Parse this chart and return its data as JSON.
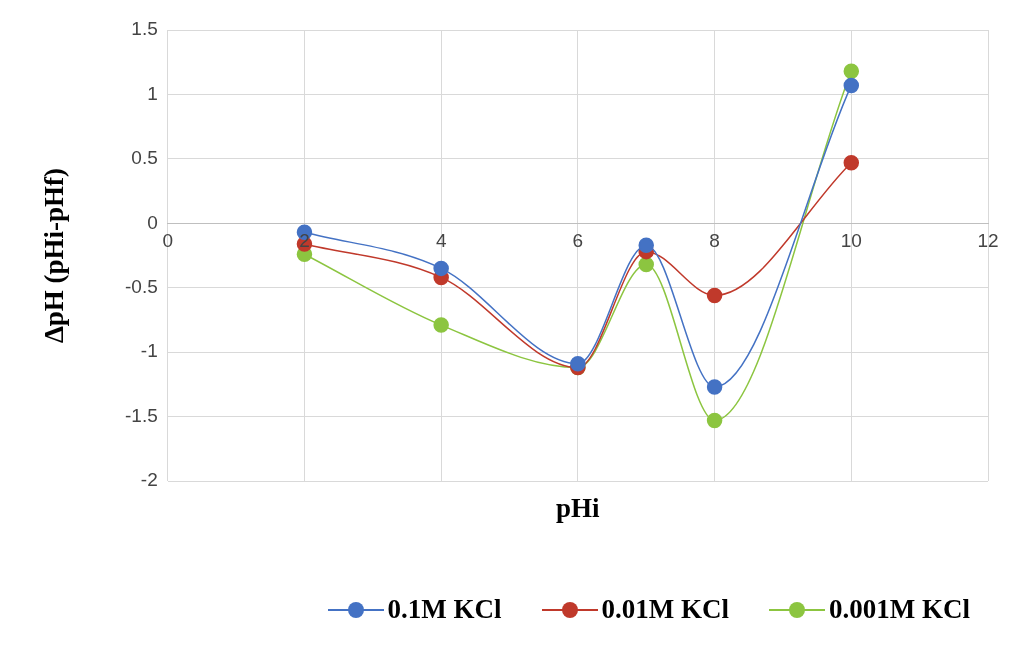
{
  "chart_data": {
    "type": "line",
    "xlabel": "pHi",
    "ylabel": "ΔpH (pHi-pHf)",
    "x": [
      2,
      4,
      6,
      7,
      8,
      10
    ],
    "series": [
      {
        "name": "0.1M KCl",
        "color": "#4472c4",
        "values": [
          -0.07,
          -0.35,
          -1.09,
          -0.17,
          -1.27,
          1.07
        ]
      },
      {
        "name": "0.01M KCl",
        "color": "#c0392b",
        "values": [
          -0.16,
          -0.42,
          -1.12,
          -0.22,
          -0.56,
          0.47
        ]
      },
      {
        "name": "0.001M KCl",
        "color": "#8cc540",
        "values": [
          -0.24,
          -0.79,
          -1.12,
          -0.32,
          -1.53,
          1.18
        ]
      }
    ],
    "xlim": [
      0,
      12
    ],
    "xticks": [
      0,
      2,
      4,
      6,
      8,
      10,
      12
    ],
    "ylim": [
      -2,
      1.5
    ],
    "yticks": [
      -2,
      -1.5,
      -1,
      -0.5,
      0,
      0.5,
      1,
      1.5
    ],
    "grid": true,
    "legend": "bottom",
    "marker": "circle",
    "line_style": "solid"
  }
}
